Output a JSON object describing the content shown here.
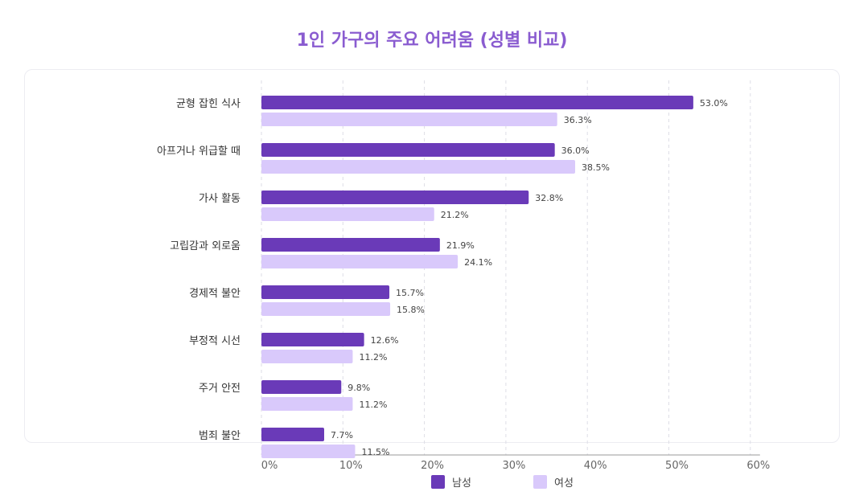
{
  "title": "1인 가구의 주요 어려움 (성별 비교)",
  "chart_data": {
    "type": "bar",
    "orientation": "horizontal",
    "title": "1인 가구의 주요 어려움 (성별 비교)",
    "categories": [
      "균형 잡힌 식사",
      "아프거나 위급할 때",
      "가사 활동",
      "고립감과 외로움",
      "경제적 불안",
      "부정적 시선",
      "주거 안전",
      "범죄 불안"
    ],
    "series": [
      {
        "name": "남성",
        "color": "#6a3ab8",
        "values": [
          53.0,
          36.0,
          32.8,
          21.9,
          15.7,
          12.6,
          9.8,
          7.7
        ]
      },
      {
        "name": "여성",
        "color": "#d9c9fb",
        "values": [
          36.3,
          38.5,
          21.2,
          24.1,
          15.8,
          11.2,
          11.2,
          11.5
        ]
      }
    ],
    "value_labels": [
      [
        "53.0%",
        "36.0%",
        "32.8%",
        "21.9%",
        "15.7%",
        "12.6%",
        "9.8%",
        "7.7%"
      ],
      [
        "36.3%",
        "38.5%",
        "21.2%",
        "24.1%",
        "15.8%",
        "11.2%",
        "11.2%",
        "11.5%"
      ]
    ],
    "xlim": [
      0,
      60
    ],
    "xticks": [
      0,
      10,
      20,
      30,
      40,
      50,
      60
    ],
    "xtick_labels": [
      "0%",
      "10%",
      "20%",
      "30%",
      "40%",
      "50%",
      "60%"
    ],
    "grid": true,
    "legend_position": "bottom"
  }
}
